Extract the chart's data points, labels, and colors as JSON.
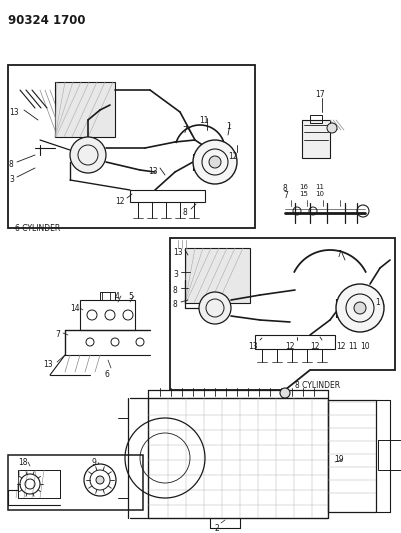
{
  "title": "90324 1700",
  "bg_color": "#ffffff",
  "line_color": "#1a1a1a",
  "fig_width": 4.02,
  "fig_height": 5.33,
  "dpi": 100,
  "labels": {
    "top_left": "90324 1700",
    "six_cyl": "6 CYLINDER",
    "eight_cyl": "8 CYLINDER"
  }
}
